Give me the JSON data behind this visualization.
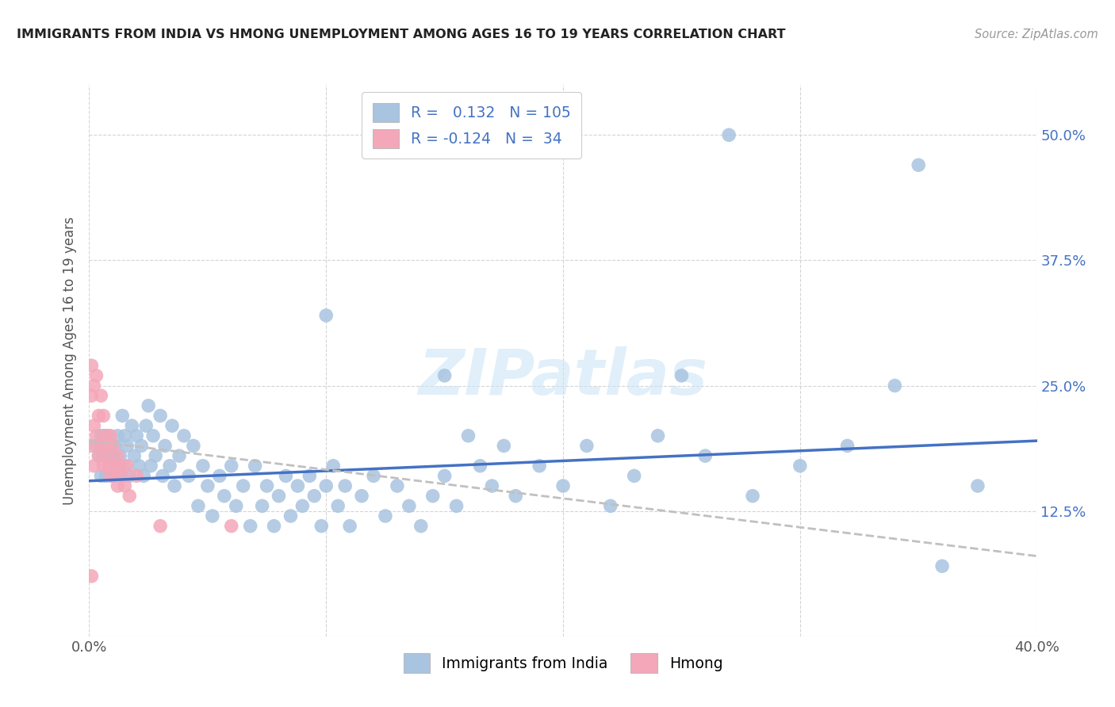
{
  "title": "IMMIGRANTS FROM INDIA VS HMONG UNEMPLOYMENT AMONG AGES 16 TO 19 YEARS CORRELATION CHART",
  "source": "Source: ZipAtlas.com",
  "ylabel": "Unemployment Among Ages 16 to 19 years",
  "xlim": [
    0.0,
    0.4
  ],
  "ylim": [
    0.0,
    0.55
  ],
  "india_R": 0.132,
  "india_N": 105,
  "hmong_R": -0.124,
  "hmong_N": 34,
  "india_color": "#a8c4e0",
  "hmong_color": "#f4a7b9",
  "india_line_color": "#4472c4",
  "hmong_line_color": "#c0c0c0",
  "background_color": "#ffffff",
  "grid_color": "#d0d0d0",
  "india_line_start_y": 0.155,
  "india_line_end_y": 0.195,
  "hmong_line_start_y": 0.195,
  "hmong_line_end_y": 0.08,
  "india_x": [
    0.003,
    0.004,
    0.005,
    0.005,
    0.006,
    0.006,
    0.007,
    0.007,
    0.008,
    0.008,
    0.009,
    0.009,
    0.01,
    0.01,
    0.011,
    0.011,
    0.012,
    0.012,
    0.013,
    0.013,
    0.014,
    0.015,
    0.015,
    0.016,
    0.017,
    0.018,
    0.019,
    0.02,
    0.021,
    0.022,
    0.023,
    0.024,
    0.025,
    0.026,
    0.027,
    0.028,
    0.03,
    0.031,
    0.032,
    0.034,
    0.035,
    0.036,
    0.038,
    0.04,
    0.042,
    0.044,
    0.046,
    0.048,
    0.05,
    0.052,
    0.055,
    0.057,
    0.06,
    0.062,
    0.065,
    0.068,
    0.07,
    0.073,
    0.075,
    0.078,
    0.08,
    0.083,
    0.085,
    0.088,
    0.09,
    0.093,
    0.095,
    0.098,
    0.1,
    0.103,
    0.105,
    0.108,
    0.11,
    0.115,
    0.12,
    0.125,
    0.13,
    0.135,
    0.14,
    0.145,
    0.15,
    0.155,
    0.16,
    0.165,
    0.17,
    0.175,
    0.18,
    0.19,
    0.2,
    0.21,
    0.22,
    0.23,
    0.24,
    0.26,
    0.28,
    0.3,
    0.32,
    0.34,
    0.36,
    0.375,
    0.1,
    0.15,
    0.25,
    0.27,
    0.35
  ],
  "india_y": [
    0.19,
    0.18,
    0.2,
    0.16,
    0.18,
    0.2,
    0.19,
    0.16,
    0.18,
    0.2,
    0.17,
    0.19,
    0.18,
    0.16,
    0.17,
    0.19,
    0.2,
    0.17,
    0.18,
    0.16,
    0.22,
    0.2,
    0.17,
    0.19,
    0.16,
    0.21,
    0.18,
    0.2,
    0.17,
    0.19,
    0.16,
    0.21,
    0.23,
    0.17,
    0.2,
    0.18,
    0.22,
    0.16,
    0.19,
    0.17,
    0.21,
    0.15,
    0.18,
    0.2,
    0.16,
    0.19,
    0.13,
    0.17,
    0.15,
    0.12,
    0.16,
    0.14,
    0.17,
    0.13,
    0.15,
    0.11,
    0.17,
    0.13,
    0.15,
    0.11,
    0.14,
    0.16,
    0.12,
    0.15,
    0.13,
    0.16,
    0.14,
    0.11,
    0.15,
    0.17,
    0.13,
    0.15,
    0.11,
    0.14,
    0.16,
    0.12,
    0.15,
    0.13,
    0.11,
    0.14,
    0.16,
    0.13,
    0.2,
    0.17,
    0.15,
    0.19,
    0.14,
    0.17,
    0.15,
    0.19,
    0.13,
    0.16,
    0.2,
    0.18,
    0.14,
    0.17,
    0.19,
    0.25,
    0.07,
    0.15,
    0.32,
    0.26,
    0.26,
    0.5,
    0.47
  ],
  "hmong_x": [
    0.001,
    0.001,
    0.001,
    0.002,
    0.002,
    0.002,
    0.003,
    0.003,
    0.004,
    0.004,
    0.005,
    0.005,
    0.006,
    0.006,
    0.007,
    0.007,
    0.008,
    0.008,
    0.009,
    0.009,
    0.01,
    0.01,
    0.011,
    0.012,
    0.012,
    0.013,
    0.014,
    0.015,
    0.016,
    0.017,
    0.02,
    0.03,
    0.06,
    0.001
  ],
  "hmong_y": [
    0.27,
    0.24,
    0.19,
    0.25,
    0.21,
    0.17,
    0.26,
    0.2,
    0.22,
    0.18,
    0.24,
    0.19,
    0.22,
    0.17,
    0.2,
    0.18,
    0.19,
    0.17,
    0.2,
    0.16,
    0.19,
    0.17,
    0.16,
    0.18,
    0.15,
    0.17,
    0.16,
    0.15,
    0.17,
    0.14,
    0.16,
    0.11,
    0.11,
    0.06
  ]
}
